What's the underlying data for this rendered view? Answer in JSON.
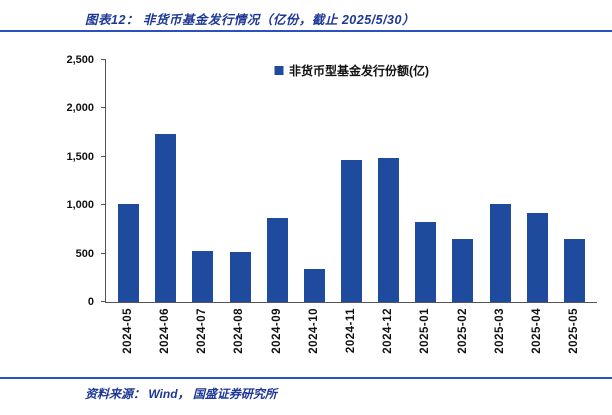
{
  "title": "图表12：  非货币基金发行情况（亿份，截止 2025/5/30）",
  "source": "资料来源：  Wind，  国盛证券研究所",
  "legend_label": "非货币型基金发行份额(亿)",
  "colors": {
    "bar": "#1E4B9E",
    "accent_line": "#2B50C0",
    "title_text": "#1D3796"
  },
  "chart_data": {
    "type": "bar",
    "title": "非货币基金发行情况（亿份，截止 2025/5/30）",
    "legend": [
      "非货币型基金发行份额(亿)"
    ],
    "categories": [
      "2024-05",
      "2024-06",
      "2024-07",
      "2024-08",
      "2024-09",
      "2024-10",
      "2024-11",
      "2024-12",
      "2025-01",
      "2025-02",
      "2025-03",
      "2025-04",
      "2025-05"
    ],
    "values": [
      1010,
      1740,
      530,
      520,
      870,
      340,
      1470,
      1490,
      830,
      650,
      1010,
      920,
      650
    ],
    "xlabel": "",
    "ylabel": "",
    "ylim": [
      0,
      2500
    ],
    "yticks": [
      0,
      500,
      1000,
      1500,
      2000,
      2500
    ],
    "grid": false,
    "legend_position": "top-center"
  }
}
